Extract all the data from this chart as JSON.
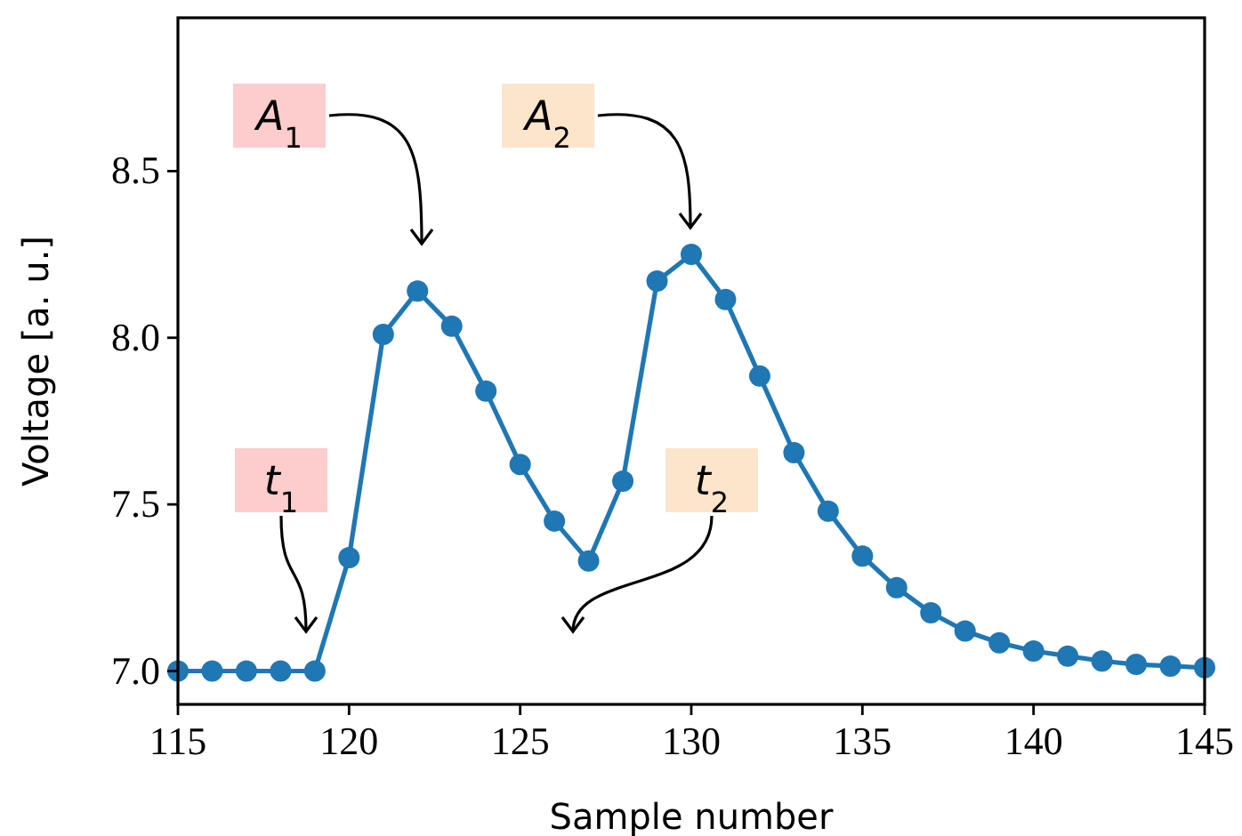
{
  "chart_data": {
    "type": "line",
    "xlabel": "Sample number",
    "ylabel": "Voltage [a. u.]",
    "x": [
      115,
      116,
      117,
      118,
      119,
      120,
      121,
      122,
      123,
      124,
      125,
      126,
      127,
      128,
      129,
      130,
      131,
      132,
      133,
      134,
      135,
      136,
      137,
      138,
      139,
      140,
      141,
      142,
      143,
      144,
      145
    ],
    "series": [
      {
        "color": "#1f77b4",
        "values": [
          7.0,
          7.0,
          7.0,
          7.0,
          7.0,
          7.34,
          8.01,
          8.14,
          8.035,
          7.84,
          7.62,
          7.45,
          7.33,
          7.57,
          8.17,
          8.25,
          8.115,
          7.885,
          7.655,
          7.48,
          7.345,
          7.25,
          7.175,
          7.12,
          7.085,
          7.06,
          7.045,
          7.03,
          7.02,
          7.015,
          7.01
        ]
      }
    ],
    "xlim": [
      115,
      145
    ],
    "ylim": [
      6.9,
      8.96
    ],
    "xticks": [
      115,
      120,
      125,
      130,
      135,
      140,
      145
    ],
    "yticks": [
      {
        "value": 7.0,
        "label": "7.0"
      },
      {
        "value": 7.5,
        "label": "7.5"
      },
      {
        "value": 8.0,
        "label": "8.0"
      },
      {
        "value": 8.5,
        "label": "8.5"
      }
    ],
    "grid": false,
    "marker": "circle",
    "line_style": "solid",
    "annotations": [
      "A$_{1}$",
      "A$_{2}$",
      "t$_{1}$",
      "t$_{2}$"
    ]
  }
}
